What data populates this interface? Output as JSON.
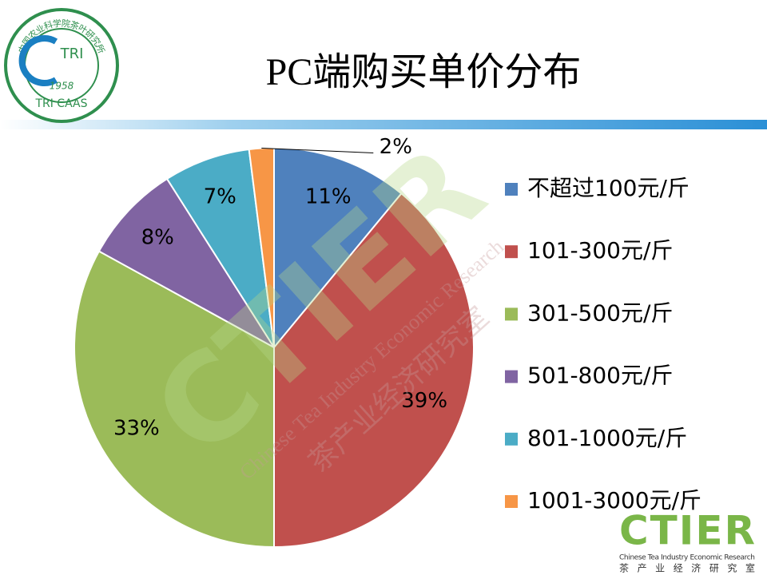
{
  "chart_data": {
    "type": "pie",
    "title": "PC端购买单价分布",
    "categories": [
      "不超过100元/斤",
      "101-300元/斤",
      "301-500元/斤",
      "501-800元/斤",
      "801-1000元/斤",
      "1001-3000元/斤"
    ],
    "values": [
      11,
      39,
      33,
      8,
      7,
      2
    ],
    "value_labels": [
      "11%",
      "39%",
      "33%",
      "8%",
      "7%",
      "2%"
    ],
    "colors": [
      "#4f81bd",
      "#c0504d",
      "#9bbb59",
      "#8064a2",
      "#4bacc6",
      "#f79646"
    ],
    "legend": "right"
  },
  "logo_top": {
    "ring_text": "中国农业科学院茶叶研究所",
    "center": "TRI",
    "year": "1958",
    "bottom": "TRI CAAS"
  },
  "logo_bottom": {
    "name": "CTIER",
    "english": "Chinese Tea Industry Economic Research",
    "chinese": "茶产业经济研究室"
  }
}
